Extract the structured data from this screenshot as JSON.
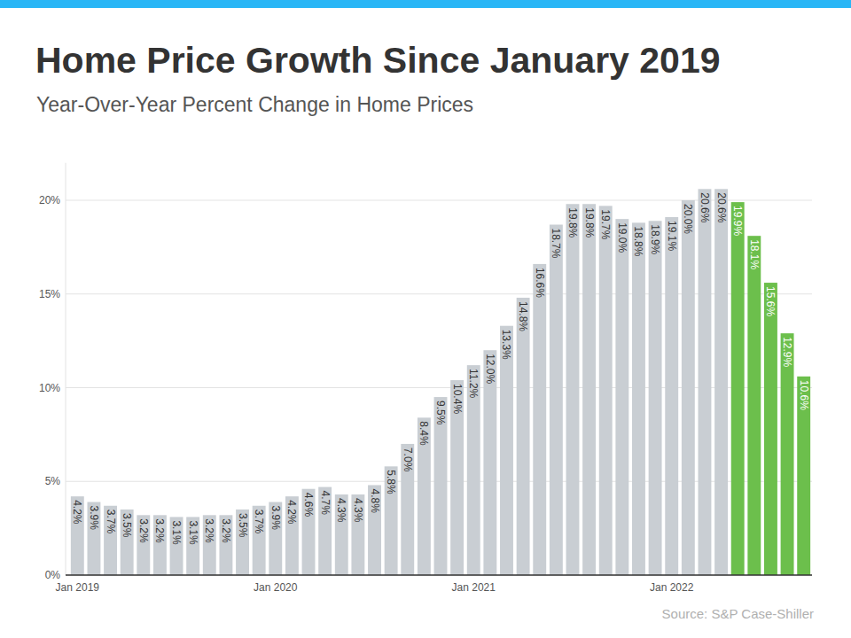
{
  "chart_data": {
    "type": "bar",
    "title": "Home Price Growth Since January 2019",
    "subtitle": "Year-Over-Year Percent Change in Home Prices",
    "source": "Source: S&P Case-Shiller",
    "categories": [
      "Jan 2019",
      null,
      null,
      null,
      null,
      null,
      null,
      null,
      null,
      null,
      null,
      null,
      "Jan 2020",
      null,
      null,
      null,
      null,
      null,
      null,
      null,
      null,
      null,
      null,
      null,
      "Jan 2021",
      null,
      null,
      null,
      null,
      null,
      null,
      null,
      null,
      null,
      null,
      null,
      "Jan 2022",
      null,
      null,
      null,
      null,
      null,
      null,
      null,
      null
    ],
    "values": [
      4.2,
      3.9,
      3.7,
      3.5,
      3.2,
      3.2,
      3.1,
      3.1,
      3.2,
      3.2,
      3.5,
      3.7,
      3.9,
      4.2,
      4.6,
      4.7,
      4.3,
      4.3,
      4.8,
      5.8,
      7.0,
      8.4,
      9.5,
      10.4,
      11.2,
      12.0,
      13.3,
      14.8,
      16.6,
      18.7,
      19.8,
      19.8,
      19.7,
      19.0,
      18.8,
      18.9,
      19.1,
      20.0,
      20.6,
      20.6,
      19.9,
      18.1,
      15.6,
      12.9,
      10.6
    ],
    "value_labels": [
      "4.2%",
      "3.9%",
      "3.7%",
      "3.5%",
      "3.2%",
      "3.2%",
      "3.1%",
      "3.1%",
      "3.2%",
      "3.2%",
      "3.5%",
      "3.7%",
      "3.9%",
      "4.2%",
      "4.6%",
      "4.7%",
      "4.3%",
      "4.3%",
      "4.8%",
      "5.8%",
      "7.0%",
      "8.4%",
      "9.5%",
      "10.4%",
      "11.2%",
      "12.0%",
      "13.3%",
      "14.8%",
      "16.6%",
      "18.7%",
      "19.8%",
      "19.8%",
      "19.7%",
      "19.0%",
      "18.8%",
      "18.9%",
      "19.1%",
      "20.0%",
      "20.6%",
      "20.6%",
      "19.9%",
      "18.1%",
      "15.6%",
      "12.9%",
      "10.6%"
    ],
    "colors": [
      "#c9ced3",
      "#c9ced3",
      "#c9ced3",
      "#c9ced3",
      "#c9ced3",
      "#c9ced3",
      "#c9ced3",
      "#c9ced3",
      "#c9ced3",
      "#c9ced3",
      "#c9ced3",
      "#c9ced3",
      "#c9ced3",
      "#c9ced3",
      "#c9ced3",
      "#c9ced3",
      "#c9ced3",
      "#c9ced3",
      "#c9ced3",
      "#c9ced3",
      "#c9ced3",
      "#c9ced3",
      "#c9ced3",
      "#c9ced3",
      "#c9ced3",
      "#c9ced3",
      "#c9ced3",
      "#c9ced3",
      "#c9ced3",
      "#c9ced3",
      "#c9ced3",
      "#c9ced3",
      "#c9ced3",
      "#c9ced3",
      "#c9ced3",
      "#c9ced3",
      "#c9ced3",
      "#c9ced3",
      "#c9ced3",
      "#c9ced3",
      "#6cbf4c",
      "#6cbf4c",
      "#6cbf4c",
      "#6cbf4c",
      "#6cbf4c"
    ],
    "ylim": [
      0,
      22
    ],
    "yticks": [
      {
        "value": 0,
        "label": "0%"
      },
      {
        "value": 5,
        "label": "5%"
      },
      {
        "value": 10,
        "label": "10%"
      },
      {
        "value": 15,
        "label": "15%"
      },
      {
        "value": 20,
        "label": "20%"
      }
    ],
    "grid": true,
    "data_labels": true
  }
}
